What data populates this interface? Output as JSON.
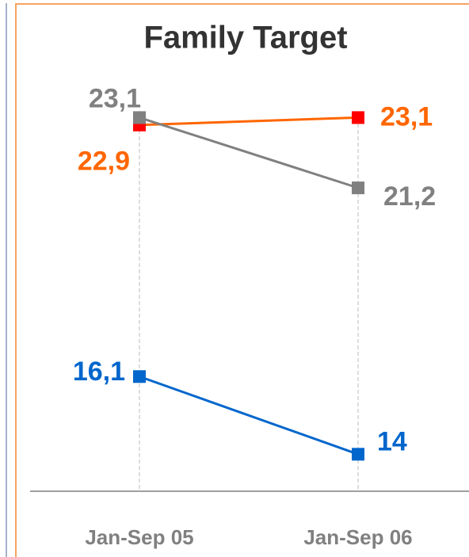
{
  "chart_data": {
    "type": "line",
    "title": "Family Target",
    "categories": [
      "Jan-Sep 05",
      "Jan-Sep 06"
    ],
    "series": [
      {
        "color": "#ff6600",
        "marker_color": "#ff0000",
        "values": [
          22.9,
          23.1
        ],
        "value_labels": [
          "22,9",
          "23,1"
        ]
      },
      {
        "color": "#808080",
        "marker_color": "#808080",
        "values": [
          23.1,
          21.2
        ],
        "value_labels": [
          "23,1",
          "21,2"
        ]
      },
      {
        "color": "#0066cc",
        "marker_color": "#0066cc",
        "values": [
          16.1,
          14
        ],
        "value_labels": [
          "16,1",
          "14"
        ]
      }
    ],
    "ylim": [
      13,
      26
    ],
    "grid": false
  }
}
